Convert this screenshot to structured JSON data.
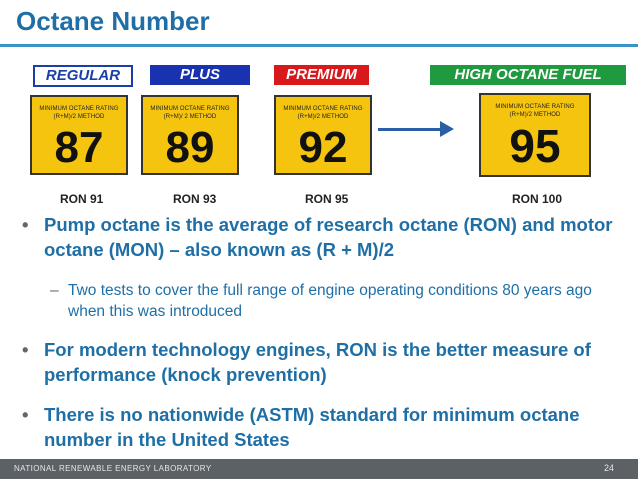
{
  "title": "Octane Number",
  "grades": [
    {
      "label": "REGULAR",
      "caption": "MINIMUM OCTANE RATING\n(R+M)/2 METHOD",
      "number": "87",
      "ron": "RON 91"
    },
    {
      "label": "PLUS",
      "caption": "MINIMUM OCTANE RATING\n(R+M)/ 2 METHOD",
      "number": "89",
      "ron": "RON 93"
    },
    {
      "label": "PREMIUM",
      "caption": "MINIMUM OCTANE RATING\n(R+M)/2 METHOD",
      "number": "92",
      "ron": "RON 95"
    },
    {
      "label": "HIGH OCTANE FUEL",
      "caption": "MINIMUM OCTANE RATING\n(R+M)/2 METHOD",
      "number": "95",
      "ron": "RON 100"
    }
  ],
  "bullets": {
    "b1": "Pump octane is the average of research octane (RON) and motor octane (MON) – also known as (R + M)/2",
    "b2": "Two tests to cover the full range of engine operating conditions 80 years ago when this was introduced",
    "b3": "For modern technology engines, RON is the better measure of performance (knock prevention)",
    "b4": "There is no nationwide (ASTM) standard for minimum octane number in the United States"
  },
  "footer": {
    "org": "NATIONAL RENEWABLE ENERGY LABORATORY",
    "page": "24"
  },
  "colors": {
    "title": "#1f6fa6",
    "regular": "#1a3fa8",
    "plus": "#1832b0",
    "premium": "#d8181a",
    "high": "#1f9a3e",
    "sign": "#f5c40f"
  }
}
